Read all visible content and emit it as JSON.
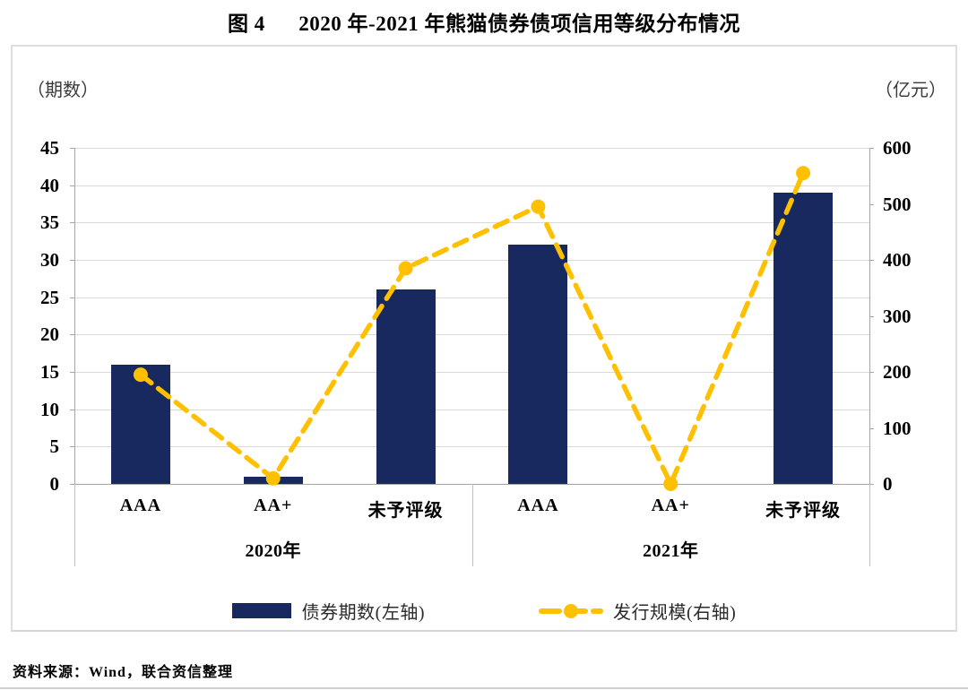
{
  "page": {
    "title": "图 4      2020 年-2021 年熊猫债券债项信用等级分布情况",
    "source_note": "资料来源：Wind，联合资信整理"
  },
  "colors": {
    "bar_navy": "#17295E",
    "line_gold": "#FFC000",
    "gridline": "#d9d9d9",
    "axis": "#a6a6a6"
  },
  "chart_data": {
    "type": "combo-bar-line",
    "title": "2020 年-2021 年熊猫债券债项信用等级分布情况",
    "grid": true,
    "legend_position": "bottom",
    "left_axis": {
      "unit_label": "（期数）",
      "min": 0,
      "max": 45,
      "step": 5,
      "tick_labels": [
        "0",
        "5",
        "10",
        "15",
        "20",
        "25",
        "30",
        "35",
        "40",
        "45"
      ]
    },
    "right_axis": {
      "unit_label": "（亿元）",
      "min": 0,
      "max": 600,
      "step": 100,
      "tick_labels": [
        "0",
        "100",
        "200",
        "300",
        "400",
        "500",
        "600"
      ]
    },
    "categories": [
      "AAA",
      "AA+",
      "未予评级",
      "AAA",
      "AA+",
      "未予评级"
    ],
    "groups": [
      {
        "label": "2020年",
        "span": [
          0,
          2
        ]
      },
      {
        "label": "2021年",
        "span": [
          3,
          5
        ]
      }
    ],
    "series": [
      {
        "name": "债券期数(左轴)",
        "type": "bar",
        "axis": "left",
        "color": "#17295E",
        "values": [
          16,
          1,
          26,
          32,
          0,
          39
        ]
      },
      {
        "name": "发行规模(右轴)",
        "type": "line",
        "axis": "right",
        "color": "#FFC000",
        "values": [
          195,
          10,
          385,
          495,
          0,
          555
        ]
      }
    ]
  }
}
